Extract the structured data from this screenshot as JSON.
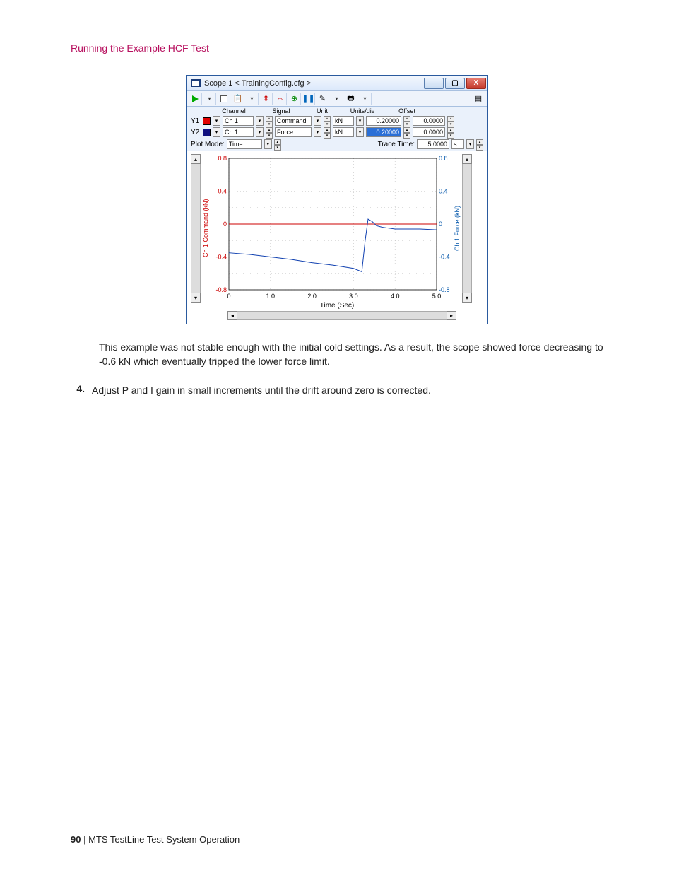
{
  "page": {
    "heading": "Running the Example HCF Test",
    "body_para": "This example was not stable enough with the initial cold settings. As a result, the scope showed force decreasing to -0.6 kN which eventually tripped the lower force limit.",
    "list_num": "4.",
    "list_text": "Adjust P and I gain in small increments until the drift around zero is corrected.",
    "footer_page": "90",
    "footer_sep": " | ",
    "footer_title": "MTS TestLine Test System Operation"
  },
  "win": {
    "title": "Scope 1 < TrainingConfig.cfg >",
    "buttons": {
      "min": "—",
      "max": "▢",
      "close": "X"
    },
    "hdr": {
      "channel": "Channel",
      "signal": "Signal",
      "unit": "Unit",
      "unitsdiv": "Units/div",
      "offset": "Offset"
    },
    "rows": [
      {
        "lbl": "Y1",
        "color": "#e00000",
        "ch": "Ch 1",
        "sig": "Command",
        "unit": "kN",
        "udiv": "0.20000",
        "off": "0.0000",
        "hl": false
      },
      {
        "lbl": "Y2",
        "color": "#101080",
        "ch": "Ch 1",
        "sig": "Force",
        "unit": "kN",
        "udiv": "0.20000",
        "off": "0.0000",
        "hl": true
      }
    ],
    "plotmode": {
      "lbl": "Plot Mode:",
      "val": "Time"
    },
    "tracetime": {
      "lbl": "Trace Time:",
      "val": "5.0000",
      "unit": "s"
    },
    "chart": {
      "y_left_label": "Ch 1 Command (kN)",
      "y_right_label": "Ch 1 Force (kN)",
      "x_label": "Time (Sec)",
      "y_left_color": "#cc0000",
      "y_right_color": "#0055aa",
      "grid_color": "#bdbdbd",
      "bg": "#ffffff",
      "xlim": [
        0,
        5
      ],
      "ylim": [
        -0.8,
        0.8
      ],
      "xticks": [
        0,
        1.0,
        2.0,
        3.0,
        4.0,
        5.0
      ],
      "yticks": [
        -0.8,
        -0.4,
        0,
        0.4,
        0.8
      ],
      "series": [
        {
          "name": "command",
          "color": "#cc0000",
          "width": 1.0,
          "points": [
            [
              0,
              0
            ],
            [
              5,
              0
            ]
          ]
        },
        {
          "name": "force",
          "color": "#1040b0",
          "width": 1.0,
          "points": [
            [
              0,
              -0.35
            ],
            [
              0.5,
              -0.37
            ],
            [
              1.0,
              -0.4
            ],
            [
              1.5,
              -0.43
            ],
            [
              2.0,
              -0.47
            ],
            [
              2.5,
              -0.5
            ],
            [
              3.0,
              -0.54
            ],
            [
              3.2,
              -0.58
            ],
            [
              3.28,
              -0.2
            ],
            [
              3.35,
              0.06
            ],
            [
              3.45,
              0.03
            ],
            [
              3.55,
              -0.02
            ],
            [
              3.7,
              -0.04
            ],
            [
              3.85,
              -0.05
            ],
            [
              4.0,
              -0.06
            ],
            [
              4.3,
              -0.06
            ],
            [
              4.6,
              -0.06
            ],
            [
              5.0,
              -0.07
            ]
          ]
        }
      ]
    }
  }
}
